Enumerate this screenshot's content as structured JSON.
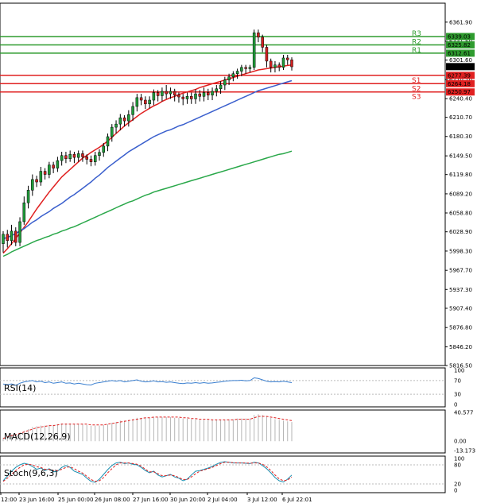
{
  "chart_data": {
    "type": "candlestick",
    "price_axis": {
      "min": 5816.5,
      "max": 6392.0,
      "ticks": [
        "6361.90",
        "6331.50",
        "6301.60",
        "6270.70",
        "6240.40",
        "6210.70",
        "6180.30",
        "6149.50",
        "6119.80",
        "6089.20",
        "6058.80",
        "6028.90",
        "5998.30",
        "5967.70",
        "5937.30",
        "5907.40",
        "5876.80",
        "5846.20",
        "5816.50"
      ]
    },
    "time_axis": {
      "ticks": [
        "12:00",
        "23 Jun 16:00",
        "25 Jun 00:00",
        "26 Jun 08:00",
        "27 Jun 16:00",
        "30 Jun 20:00",
        "2 Jul 04:00",
        "3 Jul 12:00",
        "6 Jul 22:01"
      ]
    },
    "levels": [
      {
        "name": "R3",
        "value": 6339.03,
        "color": "#2e9b2e"
      },
      {
        "name": "R2",
        "value": 6325.82,
        "color": "#2e9b2e"
      },
      {
        "name": "R1",
        "value": 6312.61,
        "color": "#2e9b2e"
      },
      {
        "name": "S1",
        "value": 6277.39,
        "color": "#e02020"
      },
      {
        "name": "S2",
        "value": 6264.18,
        "color": "#e02020"
      },
      {
        "name": "S3",
        "value": 6250.97,
        "color": "#e02020"
      }
    ],
    "current_price": "6291.24",
    "candles": [
      [
        6010,
        6025,
        6000,
        6030,
        5996
      ],
      [
        6025,
        6015,
        6008,
        6032,
        6004
      ],
      [
        6015,
        6030,
        6012,
        6040,
        6008
      ],
      [
        6030,
        6012,
        6008,
        6036,
        6006
      ],
      [
        6012,
        6045,
        6010,
        6052,
        6006
      ],
      [
        6045,
        6075,
        6042,
        6085,
        6040
      ],
      [
        6075,
        6095,
        6070,
        6102,
        6066
      ],
      [
        6095,
        6112,
        6090,
        6120,
        6086
      ],
      [
        6112,
        6108,
        6104,
        6118,
        6100
      ],
      [
        6108,
        6125,
        6104,
        6132,
        6102
      ],
      [
        6125,
        6120,
        6116,
        6130,
        6112
      ],
      [
        6120,
        6135,
        6116,
        6140,
        6114
      ],
      [
        6135,
        6130,
        6126,
        6140,
        6122
      ],
      [
        6130,
        6142,
        6126,
        6148,
        6124
      ],
      [
        6142,
        6150,
        6138,
        6156,
        6134
      ],
      [
        6150,
        6145,
        6140,
        6156,
        6138
      ],
      [
        6145,
        6152,
        6142,
        6158,
        6140
      ],
      [
        6152,
        6147,
        6142,
        6156,
        6138
      ],
      [
        6147,
        6153,
        6143,
        6158,
        6140
      ],
      [
        6153,
        6148,
        6143,
        6158,
        6140
      ],
      [
        6148,
        6144,
        6138,
        6152,
        6136
      ],
      [
        6144,
        6140,
        6136,
        6150,
        6133
      ],
      [
        6140,
        6150,
        6136,
        6156,
        6134
      ],
      [
        6150,
        6155,
        6145,
        6160,
        6142
      ],
      [
        6155,
        6165,
        6150,
        6170,
        6148
      ],
      [
        6165,
        6180,
        6160,
        6185,
        6157
      ],
      [
        6180,
        6195,
        6175,
        6200,
        6172
      ],
      [
        6195,
        6200,
        6190,
        6206,
        6185
      ],
      [
        6200,
        6210,
        6195,
        6216,
        6190
      ],
      [
        6210,
        6205,
        6200,
        6214,
        6196
      ],
      [
        6205,
        6215,
        6200,
        6222,
        6196
      ],
      [
        6215,
        6228,
        6210,
        6235,
        6205
      ],
      [
        6228,
        6242,
        6224,
        6248,
        6220
      ],
      [
        6242,
        6238,
        6234,
        6248,
        6230
      ],
      [
        6238,
        6232,
        6228,
        6244,
        6224
      ],
      [
        6232,
        6238,
        6228,
        6244,
        6225
      ],
      [
        6238,
        6250,
        6234,
        6255,
        6230
      ],
      [
        6250,
        6245,
        6240,
        6254,
        6236
      ],
      [
        6245,
        6252,
        6240,
        6258,
        6236
      ],
      [
        6252,
        6248,
        6244,
        6262,
        6240
      ],
      [
        6248,
        6252,
        6244,
        6258,
        6240
      ],
      [
        6252,
        6246,
        6240,
        6256,
        6236
      ],
      [
        6246,
        6243,
        6238,
        6250,
        6234
      ],
      [
        6243,
        6240,
        6236,
        6248,
        6230
      ],
      [
        6240,
        6244,
        6236,
        6250,
        6232
      ],
      [
        6244,
        6240,
        6236,
        6250,
        6232
      ],
      [
        6240,
        6248,
        6236,
        6255,
        6232
      ],
      [
        6248,
        6244,
        6240,
        6254,
        6236
      ],
      [
        6244,
        6250,
        6240,
        6258,
        6236
      ],
      [
        6250,
        6246,
        6242,
        6256,
        6238
      ],
      [
        6246,
        6252,
        6242,
        6258,
        6238
      ],
      [
        6252,
        6256,
        6248,
        6262,
        6244
      ],
      [
        6256,
        6262,
        6252,
        6268,
        6248
      ],
      [
        6262,
        6270,
        6258,
        6275,
        6254
      ],
      [
        6270,
        6275,
        6266,
        6280,
        6262
      ],
      [
        6275,
        6280,
        6271,
        6284,
        6268
      ],
      [
        6280,
        6284,
        6276,
        6288,
        6272
      ],
      [
        6284,
        6290,
        6280,
        6294,
        6276
      ],
      [
        6290,
        6288,
        6284,
        6294,
        6280
      ],
      [
        6288,
        6290,
        6285,
        6294,
        6282
      ],
      [
        6290,
        6345,
        6288,
        6350,
        6286
      ],
      [
        6345,
        6338,
        6334,
        6350,
        6330
      ],
      [
        6338,
        6322,
        6318,
        6342,
        6314
      ],
      [
        6322,
        6300,
        6296,
        6326,
        6290
      ],
      [
        6300,
        6290,
        6286,
        6304,
        6282
      ],
      [
        6290,
        6294,
        6286,
        6300,
        6282
      ],
      [
        6294,
        6290,
        6287,
        6298,
        6284
      ],
      [
        6290,
        6305,
        6288,
        6310,
        6286
      ],
      [
        6305,
        6302,
        6298,
        6310,
        6294
      ],
      [
        6302,
        6291,
        6288,
        6306,
        6285
      ]
    ],
    "moving_averages": [
      {
        "color": "#e02020",
        "values": [
          5995,
          6002,
          6010,
          6018,
          6027,
          6036,
          6045,
          6055,
          6065,
          6074,
          6083,
          6092,
          6100,
          6108,
          6116,
          6122,
          6128,
          6134,
          6140,
          6146,
          6150,
          6155,
          6159,
          6163,
          6168,
          6173,
          6179,
          6185,
          6191,
          6197,
          6202,
          6207,
          6212,
          6217,
          6221,
          6225,
          6229,
          6232,
          6236,
          6239,
          6242,
          6244,
          6247,
          6249,
          6251,
          6253,
          6255,
          6258,
          6260,
          6262,
          6264,
          6266,
          6268,
          6270,
          6272,
          6274,
          6276,
          6278,
          6280,
          6282,
          6284,
          6286,
          6287,
          6288,
          6289,
          6290,
          6291,
          6292,
          6293,
          6294
        ]
      },
      {
        "color": "#3a5fcd",
        "values": [
          6018,
          6020,
          6023,
          6026,
          6030,
          6034,
          6039,
          6044,
          6048,
          6053,
          6057,
          6061,
          6066,
          6070,
          6074,
          6079,
          6084,
          6088,
          6093,
          6098,
          6103,
          6108,
          6114,
          6119,
          6125,
          6131,
          6136,
          6141,
          6146,
          6151,
          6156,
          6160,
          6164,
          6168,
          6172,
          6176,
          6180,
          6183,
          6186,
          6189,
          6191,
          6194,
          6197,
          6199,
          6202,
          6205,
          6208,
          6211,
          6214,
          6217,
          6220,
          6223,
          6226,
          6229,
          6232,
          6235,
          6238,
          6241,
          6244,
          6247,
          6250,
          6253,
          6255,
          6257,
          6259,
          6261,
          6263,
          6265,
          6267,
          6269
        ]
      },
      {
        "color": "#2aa84a",
        "values": [
          5990,
          5993,
          5997,
          6000,
          6003,
          6006,
          6009,
          6012,
          6015,
          6017,
          6020,
          6022,
          6025,
          6027,
          6030,
          6032,
          6035,
          6037,
          6040,
          6043,
          6046,
          6049,
          6052,
          6055,
          6058,
          6061,
          6064,
          6067,
          6070,
          6073,
          6076,
          6078,
          6081,
          6084,
          6087,
          6089,
          6092,
          6094,
          6096,
          6098,
          6100,
          6102,
          6104,
          6106,
          6108,
          6110,
          6112,
          6114,
          6116,
          6118,
          6120,
          6122,
          6124,
          6126,
          6128,
          6130,
          6132,
          6134,
          6136,
          6138,
          6140,
          6142,
          6144,
          6146,
          6148,
          6150,
          6152,
          6153,
          6155,
          6157
        ]
      }
    ],
    "indicators": [
      {
        "name": "RSI(14)",
        "axis_ticks": [
          "100",
          "70",
          "30",
          "0"
        ],
        "min": 0,
        "max": 100,
        "values": [
          60,
          58,
          60,
          56,
          62,
          66,
          68,
          70,
          66,
          68,
          64,
          66,
          62,
          64,
          66,
          62,
          63,
          60,
          62,
          60,
          58,
          57,
          62,
          64,
          66,
          68,
          70,
          68,
          70,
          66,
          68,
          70,
          72,
          68,
          66,
          67,
          69,
          66,
          67,
          65,
          66,
          64,
          62,
          61,
          63,
          62,
          64,
          62,
          64,
          62,
          63,
          65,
          66,
          68,
          69,
          70,
          70,
          71,
          69,
          70,
          78,
          76,
          72,
          68,
          66,
          67,
          66,
          68,
          66,
          64
        ]
      },
      {
        "name": "MACD(12,26,9)",
        "axis_ticks": [
          "40.577",
          "0.00",
          "-13.173"
        ],
        "min": -13.173,
        "max": 40.577,
        "hist": [
          5,
          7,
          9,
          10,
          12,
          15,
          17,
          20,
          21,
          22,
          22,
          23,
          23,
          24,
          25,
          25,
          25,
          24,
          24,
          24,
          23,
          22,
          22,
          22,
          23,
          24,
          26,
          27,
          29,
          29,
          30,
          31,
          33,
          33,
          33,
          33,
          34,
          34,
          34,
          34,
          34,
          33,
          33,
          32,
          32,
          31,
          31,
          30,
          30,
          30,
          30,
          30,
          30,
          30,
          31,
          31,
          32,
          32,
          32,
          32,
          37,
          38,
          37,
          35,
          33,
          31,
          30,
          29,
          28,
          27
        ],
        "signal": [
          4,
          6,
          8,
          9,
          11,
          13,
          15,
          17,
          19,
          20,
          21,
          22,
          22,
          23,
          24,
          24,
          24,
          24,
          24,
          24,
          24,
          23,
          23,
          23,
          23,
          24,
          25,
          26,
          27,
          28,
          29,
          30,
          31,
          32,
          33,
          33,
          34,
          34,
          34,
          34,
          34,
          34,
          34,
          33,
          33,
          32,
          32,
          31,
          31,
          31,
          30,
          30,
          30,
          30,
          30,
          30,
          31,
          31,
          31,
          31,
          33,
          35,
          35,
          35,
          34,
          33,
          32,
          31,
          30,
          29
        ]
      },
      {
        "name": "Stoch(9,6,3)",
        "axis_ticks": [
          "100",
          "80",
          "20",
          "0"
        ],
        "min": 0,
        "max": 100,
        "k": [
          30,
          45,
          60,
          72,
          80,
          85,
          82,
          75,
          66,
          70,
          62,
          68,
          58,
          60,
          72,
          78,
          72,
          60,
          55,
          50,
          38,
          28,
          25,
          35,
          50,
          65,
          78,
          86,
          88,
          84,
          86,
          82,
          80,
          72,
          62,
          55,
          60,
          48,
          42,
          46,
          50,
          42,
          38,
          30,
          35,
          48,
          60,
          62,
          66,
          70,
          75,
          82,
          88,
          90,
          88,
          86,
          86,
          86,
          85,
          84,
          88,
          86,
          78,
          68,
          55,
          40,
          30,
          26,
          35,
          48
        ],
        "d": [
          28,
          38,
          50,
          62,
          72,
          80,
          82,
          80,
          74,
          72,
          66,
          66,
          62,
          62,
          66,
          72,
          74,
          68,
          60,
          54,
          44,
          34,
          28,
          30,
          40,
          55,
          68,
          80,
          86,
          86,
          86,
          84,
          82,
          76,
          66,
          58,
          58,
          52,
          46,
          46,
          48,
          46,
          40,
          34,
          34,
          42,
          52,
          60,
          64,
          68,
          72,
          78,
          84,
          88,
          88,
          87,
          86,
          86,
          86,
          85,
          86,
          86,
          82,
          74,
          62,
          48,
          36,
          30,
          32,
          42
        ]
      }
    ]
  }
}
